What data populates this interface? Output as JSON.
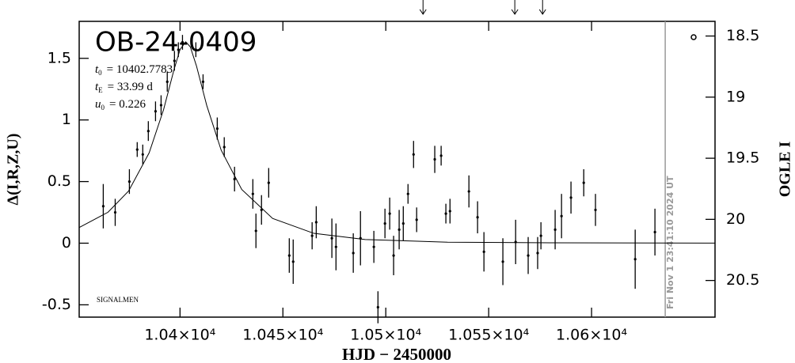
{
  "chart_data": {
    "type": "scatter",
    "title": "OB-24-0409",
    "annotations": [
      {
        "symbol": "t",
        "sub": "0",
        "text": "= 10402.7783"
      },
      {
        "symbol": "t",
        "sub": "E",
        "text": "= 33.99 d"
      },
      {
        "symbol": "u",
        "sub": "0",
        "text": "= 0.226"
      }
    ],
    "footer": "SIGNALMEN",
    "timestamp": "Fri Nov  1 23:41:10 2024 UT",
    "timestamp_x": 10635.8,
    "x_label": "HJD − 2450000",
    "y_label": "Δ(I,R,Z,U)",
    "y2_label": "OGLE I",
    "xlim": [
      10351,
      10660
    ],
    "ylim": [
      -0.6,
      1.8
    ],
    "y2lim": [
      20.8,
      18.38
    ],
    "xticks": [
      {
        "value": 10400,
        "label": "1.04×10⁴"
      },
      {
        "value": 10450,
        "label": "1.045×10⁴"
      },
      {
        "value": 10500,
        "label": "1.05×10⁴"
      },
      {
        "value": 10550,
        "label": "1.055×10⁴"
      },
      {
        "value": 10600,
        "label": "1.06×10⁴"
      }
    ],
    "yticks": [
      -0.5,
      0,
      0.5,
      1,
      1.5
    ],
    "y2ticks": [
      18.5,
      19,
      19.5,
      20,
      20.5
    ],
    "arrows": [
      10518.1,
      10562.7,
      10576.2
    ],
    "color": "#000000",
    "series": [
      {
        "x": [
          10362.7,
          10368.5,
          10375.4,
          10379.2,
          10381.9,
          10384.6,
          10388.1,
          10390.8,
          10393.8,
          10397.3,
          10399.2,
          10401.2,
          10407.7,
          10411.2,
          10418.1,
          10421.5,
          10426.5,
          10435.4,
          10436.9,
          10439.6,
          10443.1,
          10453.1,
          10455,
          10464.2,
          10466.2,
          10473.8,
          10475.8,
          10484.2,
          10487.7,
          10494.2,
          10496.2,
          10499.6,
          10501.9,
          10503.8,
          10506.5,
          10508.5,
          10510.8,
          10513.5,
          10515,
          10523.8,
          10526.9,
          10529.2,
          10531.2,
          10540.4,
          10544.6,
          10547.7,
          10556.9,
          10563.1,
          10569.2,
          10573.8,
          10575.4,
          10582.3,
          10585.4,
          10590,
          10596.2,
          10601.9,
          10621.2,
          10630.8
        ],
        "values": [
          0.3,
          0.25,
          0.5,
          0.76,
          0.72,
          0.91,
          1.07,
          1.12,
          1.31,
          1.48,
          1.57,
          1.63,
          1.57,
          1.31,
          0.93,
          0.78,
          0.52,
          0.4,
          0.1,
          0.27,
          0.49,
          -0.1,
          -0.15,
          0.06,
          0.17,
          0.04,
          -0.03,
          -0.08,
          0.04,
          -0.03,
          -0.52,
          0.16,
          0.24,
          -0.1,
          0.11,
          0.16,
          0.4,
          0.72,
          0.19,
          0.68,
          0.71,
          0.24,
          0.26,
          0.42,
          0.21,
          -0.07,
          -0.15,
          0.01,
          -0.1,
          -0.08,
          0.06,
          0.11,
          0.22,
          0.37,
          0.49,
          0.27,
          -0.13,
          0.09
        ],
        "errors": [
          0.18,
          0.11,
          0.1,
          0.06,
          0.08,
          0.08,
          0.08,
          0.08,
          0.08,
          0.08,
          0.06,
          0.06,
          0.06,
          0.06,
          0.09,
          0.08,
          0.1,
          0.12,
          0.14,
          0.12,
          0.12,
          0.14,
          0.18,
          0.11,
          0.13,
          0.16,
          0.19,
          0.16,
          0.22,
          0.13,
          0.13,
          0.12,
          0.13,
          0.16,
          0.16,
          0.14,
          0.08,
          0.11,
          0.1,
          0.11,
          0.08,
          0.08,
          0.1,
          0.13,
          0.13,
          0.16,
          0.19,
          0.18,
          0.15,
          0.13,
          0.11,
          0.16,
          0.18,
          0.13,
          0.11,
          0.13,
          0.24,
          0.19
        ]
      }
    ],
    "model": {
      "x": [
        10351,
        10365,
        10375,
        10385,
        10392,
        10397,
        10400,
        10402.78,
        10405,
        10408,
        10413,
        10420,
        10430,
        10445,
        10465,
        10490,
        10530,
        10580,
        10660
      ],
      "values": [
        0.127,
        0.251,
        0.423,
        0.733,
        1.083,
        1.403,
        1.571,
        1.634,
        1.593,
        1.438,
        1.117,
        0.755,
        0.436,
        0.201,
        0.08,
        0.03,
        0.008,
        0.003,
        0.001
      ]
    }
  }
}
